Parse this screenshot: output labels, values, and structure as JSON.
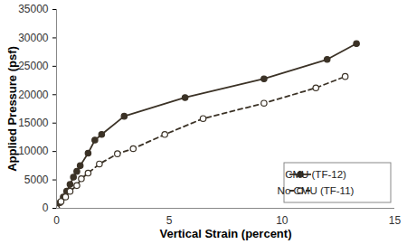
{
  "chart_data": {
    "type": "line",
    "xlabel": "Vertical Strain (percent)",
    "ylabel": "Applied Pressure (psf)",
    "xlim": [
      0,
      15
    ],
    "xticks": [
      0,
      5,
      10,
      15
    ],
    "ylim": [
      0,
      35000
    ],
    "yticks": [
      0,
      5000,
      10000,
      15000,
      20000,
      25000,
      30000,
      35000
    ],
    "grid": false,
    "legend": "bottom-right",
    "series": [
      {
        "name": "CMU (TF-12)",
        "color": "#3b3226",
        "marker": "circle",
        "line_style": "solid",
        "x": [
          0,
          0.15,
          0.3,
          0.45,
          0.6,
          0.75,
          0.9,
          1.05,
          1.4,
          1.7,
          2.0,
          3.0,
          5.7,
          9.2,
          12.0,
          13.3
        ],
        "values": [
          0,
          1000,
          2000,
          3000,
          4200,
          5500,
          6500,
          7500,
          9700,
          12000,
          13000,
          16200,
          19500,
          22800,
          26200,
          29000
        ]
      },
      {
        "name": "No CMU (TF-11)",
        "color": "#3b3226",
        "marker": "open_circle",
        "line_style": "dashed",
        "x": [
          0,
          0.2,
          0.4,
          0.6,
          0.9,
          1.1,
          1.4,
          1.9,
          2.7,
          3.4,
          4.8,
          6.5,
          9.2,
          11.5,
          12.8
        ],
        "values": [
          0,
          1200,
          2000,
          3000,
          4000,
          5200,
          6200,
          7800,
          9600,
          10500,
          13000,
          15800,
          18500,
          21200,
          23200
        ]
      }
    ]
  }
}
